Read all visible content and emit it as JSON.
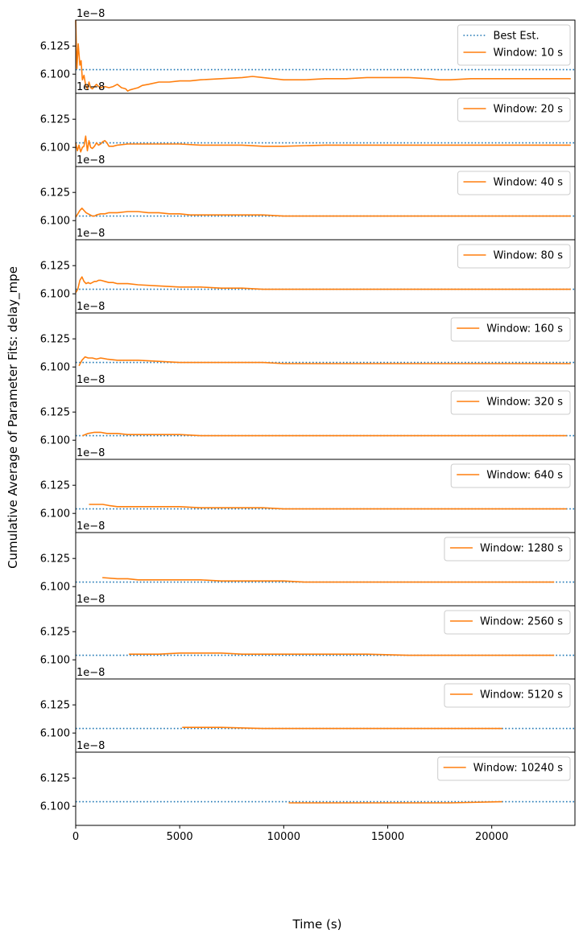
{
  "figure": {
    "ylabel": "Cumulative Average of Parameter Fits: delay_mpe",
    "xlabel": "Time (s)"
  },
  "chart_data": {
    "type": "line",
    "offset_text": "1e−8",
    "x_ticks": [
      0,
      5000,
      10000,
      15000,
      20000
    ],
    "x_tick_labels": [
      "0",
      "5000",
      "10000",
      "15000",
      "20000"
    ],
    "y_ticks": [
      6.1,
      6.125
    ],
    "y_tick_labels": [
      "6.100",
      "6.125"
    ],
    "xlim": [
      0,
      24000
    ],
    "ylim": [
      6.083,
      6.148
    ],
    "reference": {
      "name": "Best Est.",
      "value": 6.104,
      "color": "#1f77b4",
      "style": "dotted"
    },
    "series_color": "#ff7f0e",
    "panels": [
      {
        "name": "Window: 10 s",
        "show_reference_in_legend": true,
        "x": [
          0,
          60,
          120,
          200,
          260,
          320,
          400,
          480,
          560,
          640,
          720,
          800,
          900,
          1000,
          1100,
          1200,
          1400,
          1600,
          1800,
          2000,
          2200,
          2400,
          2500,
          2600,
          2800,
          3000,
          3200,
          3500,
          4000,
          4500,
          5000,
          5500,
          6000,
          7000,
          8000,
          8500,
          9000,
          10000,
          11000,
          12000,
          13000,
          14000,
          15000,
          16000,
          17000,
          17500,
          18000,
          19000,
          20000,
          21000,
          22000,
          23000,
          23800
        ],
        "y": [
          6.148,
          6.105,
          6.127,
          6.108,
          6.112,
          6.095,
          6.099,
          6.09,
          6.087,
          6.093,
          6.088,
          6.087,
          6.089,
          6.091,
          6.089,
          6.088,
          6.089,
          6.088,
          6.089,
          6.091,
          6.088,
          6.087,
          6.085,
          6.086,
          6.087,
          6.088,
          6.09,
          6.091,
          6.093,
          6.093,
          6.094,
          6.094,
          6.095,
          6.096,
          6.097,
          6.098,
          6.097,
          6.095,
          6.095,
          6.096,
          6.096,
          6.097,
          6.097,
          6.097,
          6.096,
          6.095,
          6.095,
          6.096,
          6.096,
          6.096,
          6.096,
          6.096,
          6.096
        ]
      },
      {
        "name": "Window: 20 s",
        "show_reference_in_legend": false,
        "x": [
          0,
          80,
          160,
          240,
          320,
          400,
          480,
          560,
          640,
          720,
          800,
          900,
          1000,
          1100,
          1200,
          1300,
          1400,
          1500,
          1600,
          1800,
          2000,
          2500,
          3000,
          3500,
          4000,
          4500,
          5000,
          6000,
          7000,
          8000,
          9000,
          10000,
          12000,
          14000,
          16000,
          18000,
          20000,
          22000,
          23800
        ],
        "y": [
          6.104,
          6.097,
          6.102,
          6.096,
          6.1,
          6.101,
          6.11,
          6.097,
          6.106,
          6.1,
          6.099,
          6.101,
          6.104,
          6.102,
          6.103,
          6.105,
          6.106,
          6.104,
          6.101,
          6.101,
          6.102,
          6.103,
          6.103,
          6.103,
          6.103,
          6.103,
          6.103,
          6.102,
          6.102,
          6.102,
          6.101,
          6.101,
          6.102,
          6.102,
          6.102,
          6.102,
          6.102,
          6.102,
          6.102
        ]
      },
      {
        "name": "Window: 40 s",
        "show_reference_in_legend": false,
        "x": [
          0,
          100,
          200,
          300,
          400,
          500,
          600,
          700,
          800,
          900,
          1000,
          1200,
          1400,
          1600,
          1800,
          2000,
          2500,
          3000,
          3500,
          4000,
          4500,
          5000,
          5500,
          6000,
          7000,
          8000,
          9000,
          10000,
          12000,
          14000,
          16000,
          18000,
          20000,
          22000,
          23800
        ],
        "y": [
          6.103,
          6.106,
          6.109,
          6.111,
          6.109,
          6.107,
          6.106,
          6.105,
          6.104,
          6.104,
          6.105,
          6.106,
          6.106,
          6.107,
          6.107,
          6.107,
          6.108,
          6.108,
          6.107,
          6.107,
          6.106,
          6.106,
          6.105,
          6.105,
          6.105,
          6.105,
          6.105,
          6.104,
          6.104,
          6.104,
          6.104,
          6.104,
          6.104,
          6.104,
          6.104
        ]
      },
      {
        "name": "Window: 80 s",
        "show_reference_in_legend": false,
        "x": [
          0,
          100,
          200,
          300,
          400,
          500,
          600,
          700,
          800,
          900,
          1000,
          1100,
          1200,
          1400,
          1600,
          1800,
          2000,
          2500,
          3000,
          4000,
          5000,
          6000,
          7000,
          8000,
          9000,
          10000,
          12000,
          14000,
          16000,
          18000,
          20000,
          22000,
          23800
        ],
        "y": [
          6.101,
          6.104,
          6.112,
          6.115,
          6.111,
          6.109,
          6.11,
          6.109,
          6.11,
          6.111,
          6.111,
          6.112,
          6.112,
          6.111,
          6.11,
          6.11,
          6.109,
          6.109,
          6.108,
          6.107,
          6.106,
          6.106,
          6.105,
          6.105,
          6.104,
          6.104,
          6.104,
          6.104,
          6.104,
          6.104,
          6.104,
          6.104,
          6.104
        ]
      },
      {
        "name": "Window: 160 s",
        "show_reference_in_legend": false,
        "x": [
          160,
          300,
          450,
          600,
          800,
          1000,
          1200,
          1500,
          2000,
          2500,
          3000,
          4000,
          5000,
          6000,
          7000,
          8000,
          9000,
          10000,
          12000,
          14000,
          16000,
          18000,
          20000,
          22000,
          23800
        ],
        "y": [
          6.101,
          6.106,
          6.109,
          6.108,
          6.108,
          6.107,
          6.108,
          6.107,
          6.106,
          6.106,
          6.106,
          6.105,
          6.104,
          6.104,
          6.104,
          6.104,
          6.104,
          6.103,
          6.103,
          6.103,
          6.103,
          6.103,
          6.103,
          6.103,
          6.103
        ]
      },
      {
        "name": "Window: 320 s",
        "show_reference_in_legend": false,
        "x": [
          320,
          600,
          900,
          1200,
          1500,
          2000,
          2500,
          3000,
          4000,
          5000,
          6000,
          7000,
          8000,
          9000,
          10000,
          12000,
          14000,
          16000,
          18000,
          20000,
          22000,
          23600
        ],
        "y": [
          6.104,
          6.106,
          6.107,
          6.107,
          6.106,
          6.106,
          6.105,
          6.105,
          6.105,
          6.105,
          6.104,
          6.104,
          6.104,
          6.104,
          6.104,
          6.104,
          6.104,
          6.104,
          6.104,
          6.104,
          6.104,
          6.104
        ]
      },
      {
        "name": "Window: 640 s",
        "show_reference_in_legend": false,
        "x": [
          640,
          1000,
          1300,
          1600,
          2000,
          2500,
          3000,
          3500,
          4000,
          5000,
          6000,
          7000,
          8000,
          9000,
          10000,
          12000,
          14000,
          16000,
          18000,
          20000,
          22000,
          23600
        ],
        "y": [
          6.108,
          6.108,
          6.108,
          6.107,
          6.106,
          6.106,
          6.106,
          6.106,
          6.106,
          6.106,
          6.105,
          6.105,
          6.105,
          6.105,
          6.104,
          6.104,
          6.104,
          6.104,
          6.104,
          6.104,
          6.104,
          6.104
        ]
      },
      {
        "name": "Window: 1280 s",
        "show_reference_in_legend": false,
        "x": [
          1280,
          2000,
          2500,
          3000,
          4000,
          5000,
          6000,
          7000,
          8000,
          9000,
          10000,
          11000,
          12000,
          14000,
          16000,
          18000,
          20000,
          22000,
          23000
        ],
        "y": [
          6.108,
          6.107,
          6.107,
          6.106,
          6.106,
          6.106,
          6.106,
          6.105,
          6.105,
          6.105,
          6.105,
          6.104,
          6.104,
          6.104,
          6.104,
          6.104,
          6.104,
          6.104,
          6.104
        ]
      },
      {
        "name": "Window: 2560 s",
        "show_reference_in_legend": false,
        "x": [
          2560,
          4000,
          5000,
          6000,
          7000,
          8000,
          9000,
          10000,
          12000,
          14000,
          16000,
          18000,
          20000,
          22000,
          23000
        ],
        "y": [
          6.105,
          6.105,
          6.106,
          6.106,
          6.106,
          6.105,
          6.105,
          6.105,
          6.105,
          6.105,
          6.104,
          6.104,
          6.104,
          6.104,
          6.104
        ]
      },
      {
        "name": "Window: 5120 s",
        "show_reference_in_legend": false,
        "x": [
          5120,
          7000,
          9000,
          11000,
          13000,
          15000,
          17000,
          19000,
          20500
        ],
        "y": [
          6.105,
          6.105,
          6.104,
          6.104,
          6.104,
          6.104,
          6.104,
          6.104,
          6.104
        ]
      },
      {
        "name": "Window: 10240 s",
        "show_reference_in_legend": false,
        "x": [
          10240,
          12000,
          14000,
          16000,
          18000,
          20500
        ],
        "y": [
          6.103,
          6.103,
          6.103,
          6.103,
          6.103,
          6.104
        ]
      }
    ]
  }
}
